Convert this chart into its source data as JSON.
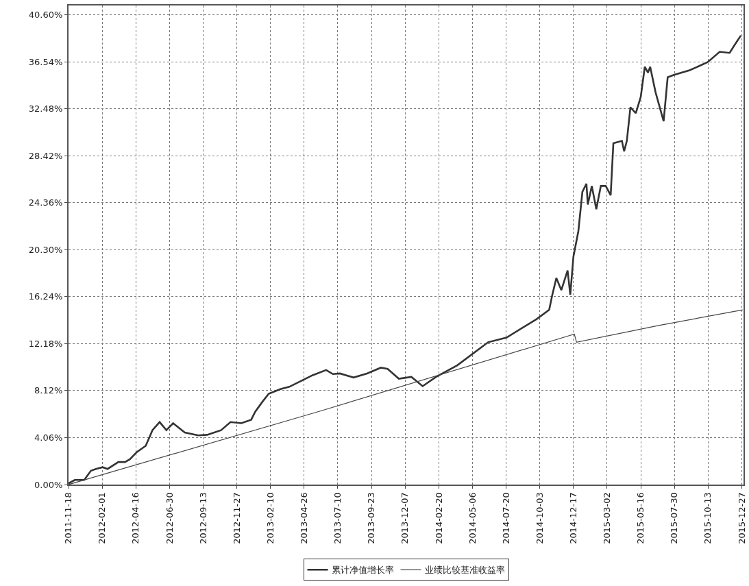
{
  "chart_data": {
    "type": "line",
    "legend": "bottom",
    "grid": true,
    "line_style": "solid",
    "xlim": [
      "2011-11-18",
      "2015-12-31"
    ],
    "xticks": [
      "2011-11-18",
      "2012-02-01",
      "2012-04-16",
      "2012-06-30",
      "2012-09-13",
      "2012-11-27",
      "2013-02-10",
      "2013-04-26",
      "2013-07-10",
      "2013-09-23",
      "2013-12-07",
      "2014-02-20",
      "2014-05-06",
      "2014-07-20",
      "2014-10-03",
      "2014-12-17",
      "2015-03-02",
      "2015-05-16",
      "2015-07-30",
      "2015-10-13",
      "2015-12-27"
    ],
    "ylim": [
      0,
      41.4
    ],
    "yticks": [
      {
        "value": 0,
        "label": "0.00%"
      },
      {
        "value": 4.06,
        "label": "4.06%"
      },
      {
        "value": 8.12,
        "label": "8.12%"
      },
      {
        "value": 12.18,
        "label": "12.18%"
      },
      {
        "value": 16.24,
        "label": "16.24%"
      },
      {
        "value": 20.3,
        "label": "20.30%"
      },
      {
        "value": 24.36,
        "label": "24.36%"
      },
      {
        "value": 28.42,
        "label": "28.42%"
      },
      {
        "value": 32.48,
        "label": "32.48%"
      },
      {
        "value": 36.54,
        "label": "36.54%"
      },
      {
        "value": 40.6,
        "label": "40.60%"
      }
    ],
    "series": [
      {
        "name": "累计净值增长率",
        "color": "#333333",
        "x": [
          "2011-11-18",
          "2011-12-02",
          "2011-12-23",
          "2012-01-07",
          "2012-01-18",
          "2012-02-02",
          "2012-02-13",
          "2012-03-08",
          "2012-03-23",
          "2012-04-03",
          "2012-04-18",
          "2012-05-08",
          "2012-05-23",
          "2012-06-08",
          "2012-06-23",
          "2012-07-08",
          "2012-08-03",
          "2012-09-02",
          "2012-09-22",
          "2012-10-23",
          "2012-11-13",
          "2012-12-07",
          "2012-12-29",
          "2013-01-07",
          "2013-01-22",
          "2013-02-06",
          "2013-03-04",
          "2013-03-24",
          "2013-04-19",
          "2013-05-15",
          "2013-06-14",
          "2013-06-29",
          "2013-07-15",
          "2013-08-14",
          "2013-09-13",
          "2013-10-14",
          "2013-10-29",
          "2013-11-23",
          "2013-12-21",
          "2014-01-15",
          "2014-02-14",
          "2014-04-02",
          "2014-06-10",
          "2014-07-21",
          "2014-09-26",
          "2014-10-24",
          "2014-10-31",
          "2014-11-09",
          "2014-11-20",
          "2014-12-04",
          "2014-12-10",
          "2014-12-17",
          "2014-12-28",
          "2015-01-06",
          "2015-01-15",
          "2015-01-18",
          "2015-01-27",
          "2015-02-06",
          "2015-02-16",
          "2015-02-27",
          "2015-03-10",
          "2015-03-16",
          "2015-04-04",
          "2015-04-09",
          "2015-04-15",
          "2015-04-23",
          "2015-05-05",
          "2015-05-16",
          "2015-05-25",
          "2015-06-01",
          "2015-06-06",
          "2015-06-18",
          "2015-07-06",
          "2015-07-15",
          "2015-07-29",
          "2015-09-02",
          "2015-10-12",
          "2015-11-08",
          "2015-11-30",
          "2015-12-13",
          "2015-12-25"
        ],
        "values": [
          0.1,
          0.4,
          0.4,
          1.2,
          1.35,
          1.5,
          1.35,
          1.95,
          1.95,
          2.2,
          2.8,
          3.35,
          4.7,
          5.4,
          4.7,
          5.3,
          4.5,
          4.25,
          4.3,
          4.7,
          5.4,
          5.3,
          5.6,
          6.3,
          7.1,
          7.85,
          8.25,
          8.45,
          8.95,
          9.45,
          9.9,
          9.55,
          9.6,
          9.25,
          9.6,
          10.1,
          10.0,
          9.15,
          9.3,
          8.5,
          9.3,
          10.3,
          12.3,
          12.7,
          14.3,
          15.1,
          16.4,
          17.85,
          16.8,
          18.5,
          16.4,
          19.7,
          21.9,
          25.3,
          26.0,
          24.2,
          25.8,
          23.8,
          25.8,
          25.8,
          25.0,
          29.5,
          29.7,
          28.8,
          29.7,
          32.6,
          32.1,
          33.5,
          36.1,
          35.6,
          36.1,
          33.9,
          31.4,
          35.2,
          35.4,
          35.8,
          36.5,
          37.4,
          37.3,
          38.1,
          38.8
        ]
      },
      {
        "name": "业绩比较基准收益率",
        "color": "#444444",
        "x": [
          "2011-11-18",
          "2013-06-01",
          "2014-12-19",
          "2014-12-24",
          "2015-06-25",
          "2015-12-29"
        ],
        "values": [
          0,
          6.35,
          13.0,
          12.3,
          13.75,
          15.1
        ]
      }
    ]
  }
}
